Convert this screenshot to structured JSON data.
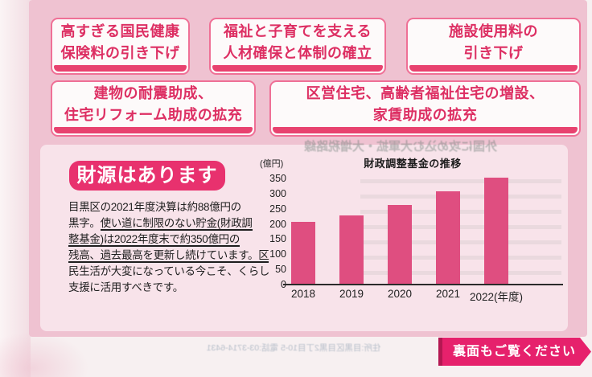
{
  "colors": {
    "flyer_bg": "#efc2d1",
    "panel_bg": "#f8e3ea",
    "box_fill": "#fdfafa",
    "box_border": "#ef7096",
    "accent_pink": "#dd2f63",
    "band_pink": "#e8426f",
    "badge_pink": "#e8316e",
    "bar_pink": "#df4e80",
    "ribbon_pink": "#e6216c",
    "underline_blue": "#5b6bc8",
    "underline_teal": "#3fa993",
    "underline_green": "#4aa56d"
  },
  "pledges": {
    "row1": [
      {
        "lines": [
          "高すぎる国民健康",
          "保険料の引き下げ"
        ]
      },
      {
        "lines": [
          "福祉と子育てを支える",
          "人材確保と体制の確立"
        ]
      },
      {
        "lines": [
          "施設使用料の",
          "引き下げ"
        ]
      }
    ],
    "row2": [
      {
        "lines": [
          "建物の耐震助成、",
          "住宅リフォーム助成の拡充"
        ]
      },
      {
        "lines": [
          "区営住宅、高齢者福祉住宅の増設、",
          "家賃助成の拡充"
        ]
      }
    ]
  },
  "finance": {
    "badge": "財源はあります",
    "lines": [
      {
        "plain": "目黒区の2021年度決算は約88億円の",
        "underlined": ""
      },
      {
        "plain": "黒字。",
        "underlined": "使い道に制限のない貯金(財政調"
      },
      {
        "plain": "",
        "underlined": "整基金)は2022年度末で約350億円の"
      },
      {
        "plain": "",
        "underlined": "残高、過去最高を更新し続けています。区"
      },
      {
        "plain": "民生活が大変になっている今こそ、くらし",
        "underlined": ""
      },
      {
        "plain": "支援に活用すべきです。",
        "underlined": ""
      }
    ]
  },
  "chart_data": {
    "type": "bar",
    "title": "財政調整基金の推移",
    "unit_label": "(億円)",
    "categories": [
      "2018",
      "2019",
      "2020",
      "2021",
      "2022"
    ],
    "x_suffix": "(年度)",
    "values": [
      205,
      225,
      260,
      305,
      350
    ],
    "yticks": [
      0,
      50,
      100,
      150,
      200,
      250,
      300,
      350
    ],
    "ylim": [
      0,
      350
    ],
    "xlabel": "年度",
    "ylabel": "億円",
    "grid": false,
    "legend": "none",
    "bar_color": "#df4e80"
  },
  "ribbon": {
    "label": "裏面もご覧ください"
  },
  "bleedthrough": {
    "headline": "外国に攻め込む大軍拡・大増税路線",
    "footer_line": "住所:目黒区目黒2丁目10-5 電話:03-3714-6431"
  }
}
